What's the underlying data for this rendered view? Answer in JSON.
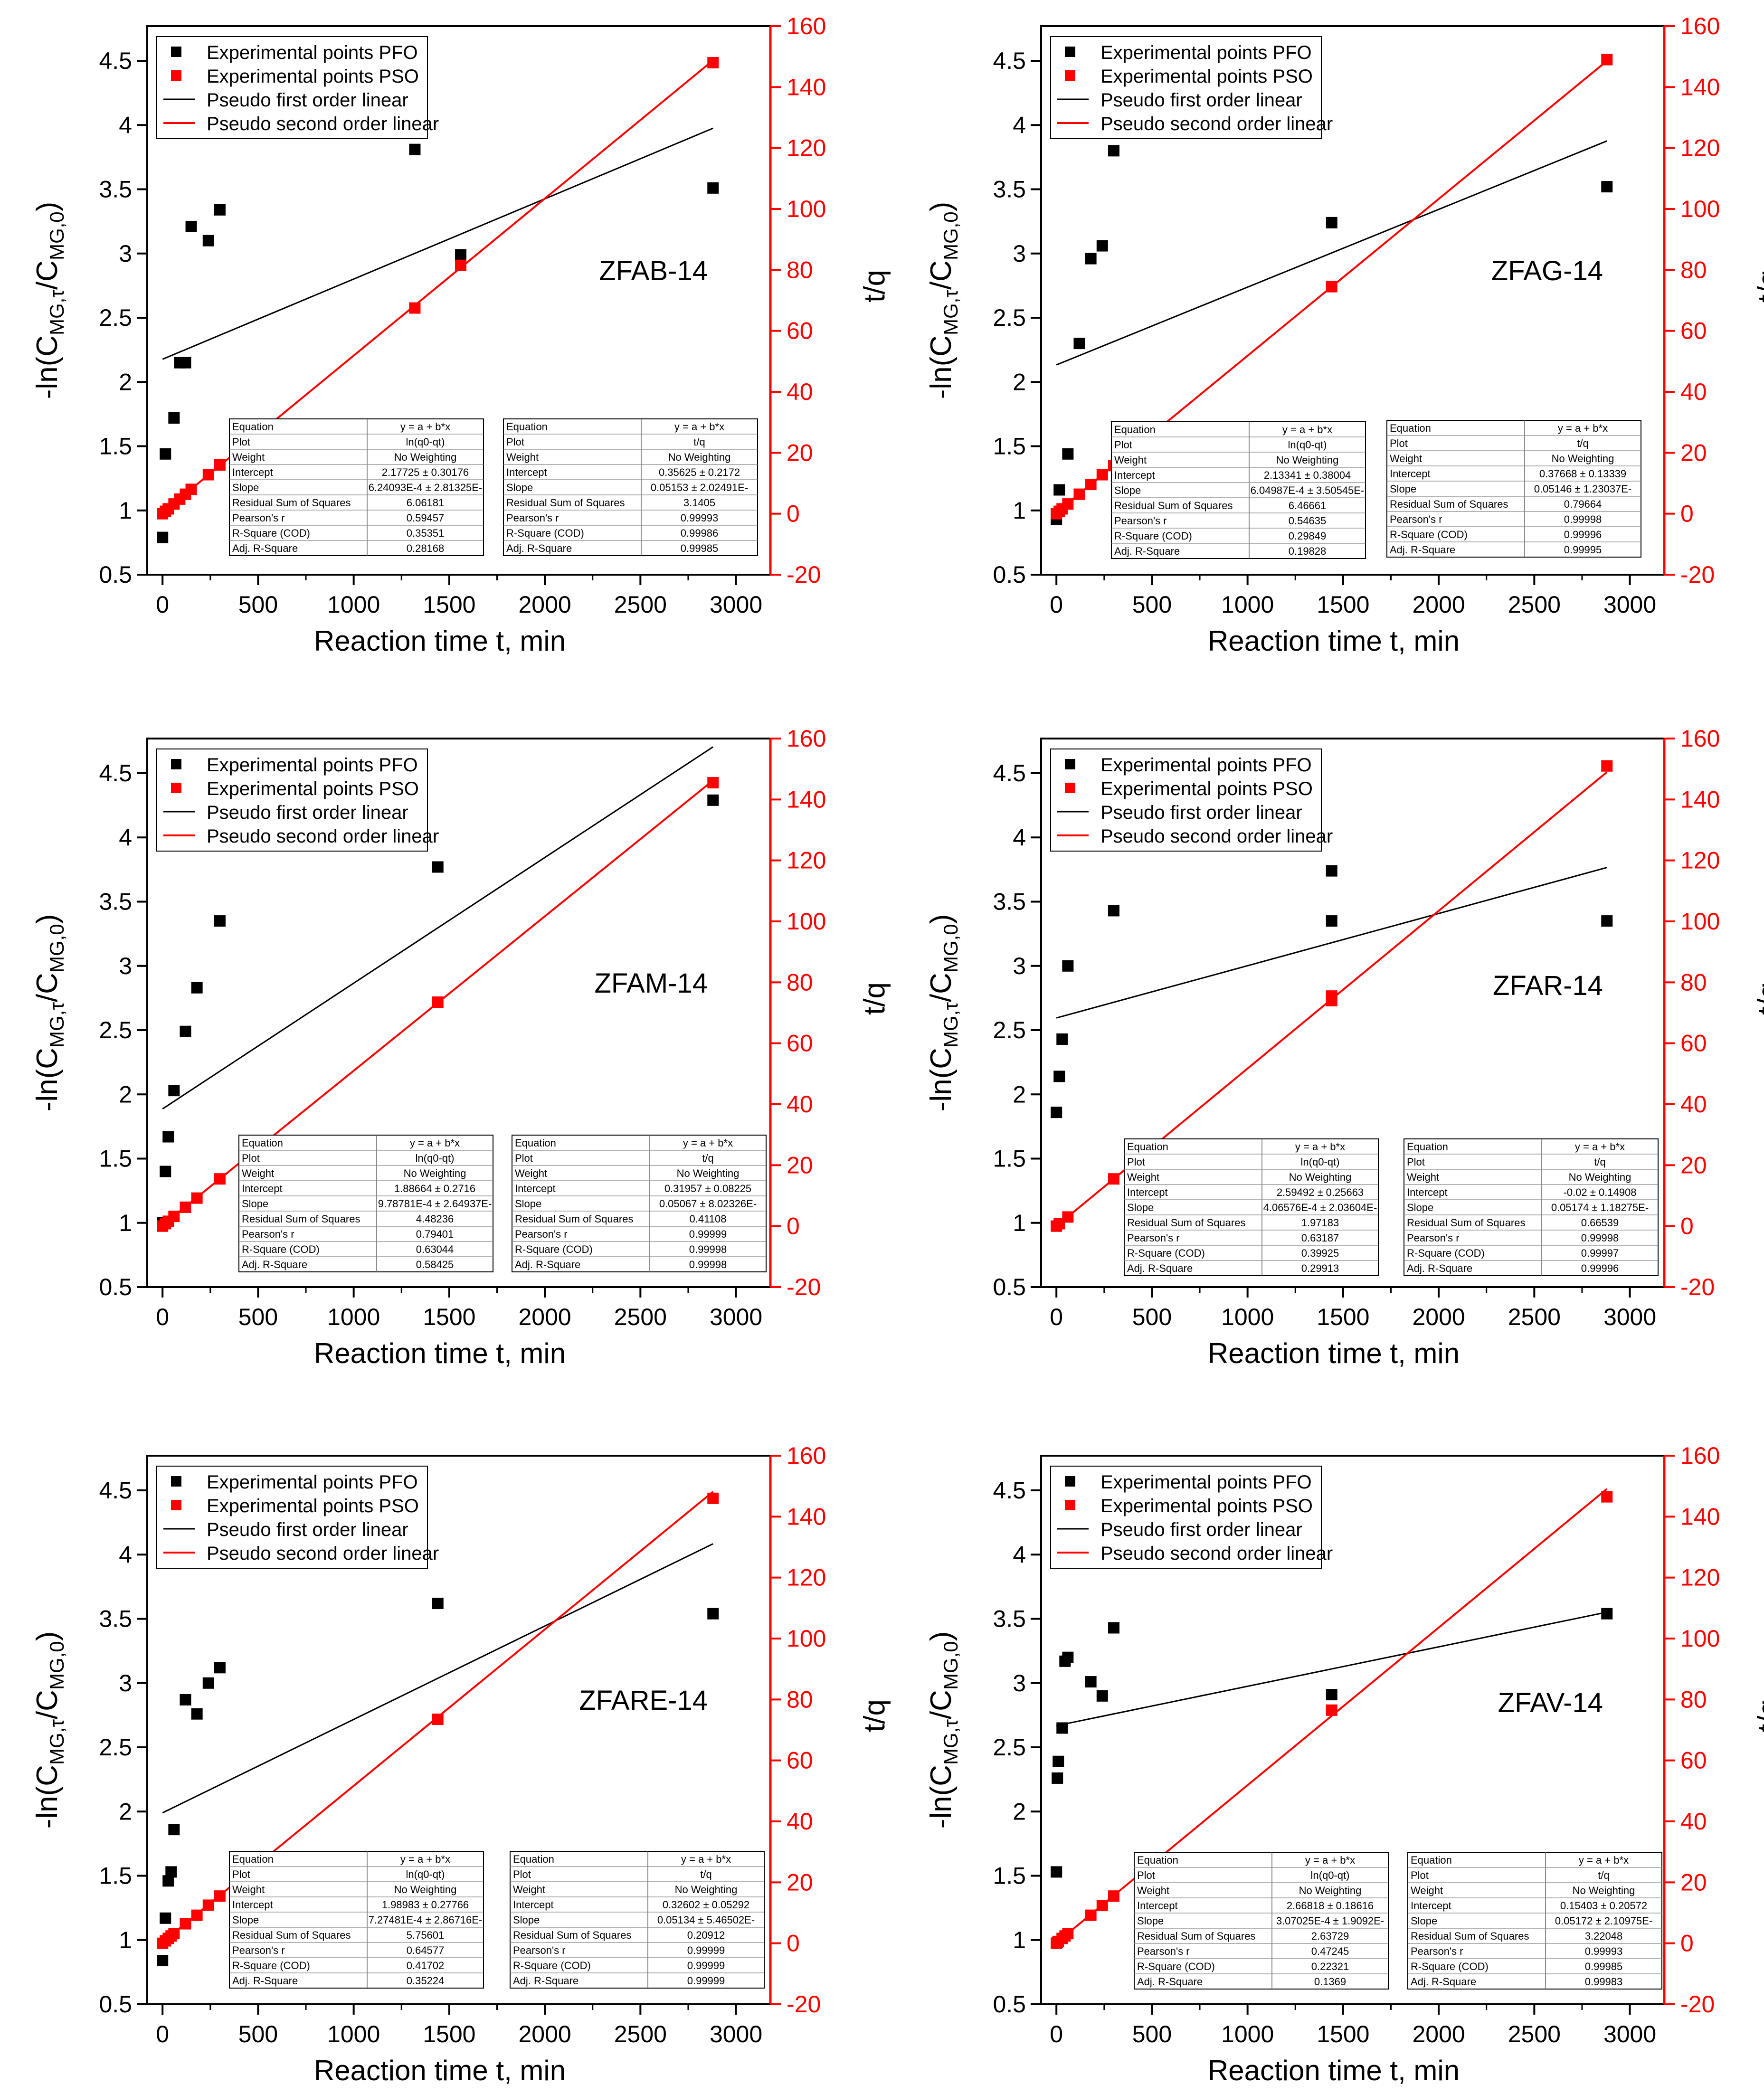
{
  "legend": {
    "pfo_points": "Experimental points PFO",
    "pso_points": "Experimental points PSO",
    "pfo_line": "Pseudo first order linear",
    "pso_line": "Pseudo second order linear"
  },
  "axis_titles": {
    "x": "Reaction time t, min",
    "y_left": "-ln(Cₘᴳ,τ/Cₘᴳ,₀)",
    "y_right": "t/q"
  },
  "fit_labels": [
    "Equation",
    "Plot",
    "Weight",
    "Intercept",
    "Slope",
    "Residual Sum of Squares",
    "Pearson's r",
    "R-Square (COD)",
    "Adj. R-Square"
  ],
  "colors": {
    "pfo": "#000000",
    "pso": "#ff0000",
    "right_axis": "#ff0000",
    "grid_box": "#555555"
  },
  "chart_data": [
    {
      "type": "scatter",
      "title": "ZFAB-14",
      "xlabel": "Reaction time t, min",
      "ylabel": "-ln(CMG,τ/CMG,0)",
      "y2label": "t/q",
      "xlim": [
        -80,
        3180
      ],
      "ylim": [
        0.5,
        4.77
      ],
      "y2lim": [
        -20,
        160
      ],
      "xticks": [
        0,
        500,
        1000,
        1500,
        2000,
        2500,
        3000
      ],
      "yticks": [
        0.5,
        1.0,
        1.5,
        2.0,
        2.5,
        3.0,
        3.5,
        4.0,
        4.5
      ],
      "y2ticks": [
        -20,
        0,
        20,
        40,
        60,
        80,
        100,
        120,
        140,
        160
      ],
      "pfo_points": {
        "x": [
          0,
          15,
          60,
          90,
          120,
          150,
          240,
          300,
          1320,
          1560,
          2880
        ],
        "y": [
          0.79,
          1.44,
          1.72,
          2.15,
          2.15,
          3.21,
          3.1,
          3.34,
          3.81,
          2.99,
          3.51
        ]
      },
      "pso_points": {
        "x": [
          0,
          15,
          30,
          60,
          90,
          120,
          150,
          240,
          300,
          1320,
          1560,
          2880
        ],
        "y": [
          0,
          0.8,
          1.6,
          3.2,
          4.8,
          6.4,
          8.0,
          12.8,
          16.0,
          67.5,
          81.5,
          148.0
        ]
      },
      "pfo_line": {
        "x": [
          0,
          2880
        ],
        "y": [
          2.177,
          3.975
        ]
      },
      "pso_line": {
        "x": [
          0,
          2880
        ],
        "y": [
          0.356,
          148.76
        ]
      },
      "fit_pfo": [
        "y = a + b*x",
        "ln(q0-qt)",
        "No Weighting",
        "2.17725 ± 0.30176",
        "6.24093E-4 ± 2.81325E-",
        "6.06181",
        "0.59457",
        "0.35351",
        "0.28168"
      ],
      "fit_pso": [
        "y = a + b*x",
        "t/q",
        "No Weighting",
        "0.35625 ± 0.2172",
        "0.05153 ± 2.02491E-",
        "3.1405",
        "0.99993",
        "0.99986",
        "0.99985"
      ]
    },
    {
      "type": "scatter",
      "title": "ZFAG-14",
      "xlabel": "Reaction time t, min",
      "ylabel": "-ln(CMG,τ/CMG,0)",
      "y2label": "t/q",
      "xlim": [
        -80,
        3180
      ],
      "ylim": [
        0.5,
        4.77
      ],
      "y2lim": [
        -20,
        160
      ],
      "xticks": [
        0,
        500,
        1000,
        1500,
        2000,
        2500,
        3000
      ],
      "yticks": [
        0.5,
        1.0,
        1.5,
        2.0,
        2.5,
        3.0,
        3.5,
        4.0,
        4.5
      ],
      "y2ticks": [
        -20,
        0,
        20,
        40,
        60,
        80,
        100,
        120,
        140,
        160
      ],
      "pfo_points": {
        "x": [
          0,
          15,
          60,
          120,
          180,
          240,
          300,
          1440,
          2880
        ],
        "y": [
          0.93,
          1.16,
          1.44,
          2.3,
          2.96,
          3.06,
          3.8,
          3.24,
          3.52
        ]
      },
      "pso_points": {
        "x": [
          0,
          15,
          30,
          60,
          120,
          180,
          240,
          300,
          1440,
          2880
        ],
        "y": [
          0,
          0.8,
          1.6,
          3.2,
          6.4,
          9.6,
          12.8,
          15.8,
          74.5,
          149.0
        ]
      },
      "pfo_line": {
        "x": [
          0,
          2880
        ],
        "y": [
          2.133,
          3.876
        ]
      },
      "pso_line": {
        "x": [
          0,
          2880
        ],
        "y": [
          0.377,
          148.58
        ]
      },
      "fit_pfo": [
        "y = a + b*x",
        "ln(q0-qt)",
        "No Weighting",
        "2.13341 ± 0.38004",
        "6.04987E-4 ± 3.50545E-",
        "6.46661",
        "0.54635",
        "0.29849",
        "0.19828"
      ],
      "fit_pso": [
        "y = a + b*x",
        "t/q",
        "No Weighting",
        "0.37668 ± 0.13339",
        "0.05146 ± 1.23037E-",
        "0.79664",
        "0.99998",
        "0.99996",
        "0.99995"
      ]
    },
    {
      "type": "scatter",
      "title": "ZFAM-14",
      "xlabel": "Reaction time t, min",
      "ylabel": "-ln(CMG,τ/CMG,0)",
      "y2label": "t/q",
      "xlim": [
        -80,
        3180
      ],
      "ylim": [
        0.5,
        4.77
      ],
      "y2lim": [
        -20,
        160
      ],
      "xticks": [
        0,
        500,
        1000,
        1500,
        2000,
        2500,
        3000
      ],
      "yticks": [
        0.5,
        1.0,
        1.5,
        2.0,
        2.5,
        3.0,
        3.5,
        4.0,
        4.5
      ],
      "y2ticks": [
        -20,
        0,
        20,
        40,
        60,
        80,
        100,
        120,
        140,
        160
      ],
      "pfo_points": {
        "x": [
          0,
          15,
          30,
          60,
          120,
          180,
          300,
          1440,
          2880
        ],
        "y": [
          1.0,
          1.4,
          1.67,
          2.03,
          2.49,
          2.83,
          3.35,
          3.77,
          4.29
        ]
      },
      "pso_points": {
        "x": [
          0,
          15,
          30,
          60,
          120,
          180,
          300,
          1440,
          2880
        ],
        "y": [
          0,
          0.8,
          1.6,
          3.2,
          6.2,
          9.2,
          15.5,
          73.5,
          145.5
        ]
      },
      "pfo_line": {
        "x": [
          0,
          2880
        ],
        "y": [
          1.887,
          4.705
        ]
      },
      "pso_line": {
        "x": [
          0,
          2880
        ],
        "y": [
          0.32,
          146.25
        ]
      },
      "fit_pfo": [
        "y = a + b*x",
        "ln(q0-qt)",
        "No Weighting",
        "1.88664 ± 0.2716",
        "9.78781E-4 ± 2.64937E-",
        "4.48236",
        "0.79401",
        "0.63044",
        "0.58425"
      ],
      "fit_pso": [
        "y = a + b*x",
        "t/q",
        "No Weighting",
        "0.31957 ± 0.08225",
        "0.05067 ± 8.02326E-",
        "0.41108",
        "0.99999",
        "0.99998",
        "0.99998"
      ]
    },
    {
      "type": "scatter",
      "title": "ZFAR-14",
      "xlabel": "Reaction time t, min",
      "ylabel": "-ln(CMG,τ/CMG,0)",
      "y2label": "t/q",
      "xlim": [
        -80,
        3180
      ],
      "ylim": [
        0.5,
        4.77
      ],
      "y2lim": [
        -20,
        160
      ],
      "xticks": [
        0,
        500,
        1000,
        1500,
        2000,
        2500,
        3000
      ],
      "yticks": [
        0.5,
        1.0,
        1.5,
        2.0,
        2.5,
        3.0,
        3.5,
        4.0,
        4.5
      ],
      "y2ticks": [
        -20,
        0,
        20,
        40,
        60,
        80,
        100,
        120,
        140,
        160
      ],
      "pfo_points": {
        "x": [
          0,
          15,
          30,
          60,
          300,
          1440,
          1440,
          2880
        ],
        "y": [
          1.86,
          2.14,
          2.43,
          3.0,
          3.43,
          3.35,
          3.74,
          3.35
        ]
      },
      "pso_points": {
        "x": [
          0,
          15,
          60,
          300,
          1440,
          1440,
          2880
        ],
        "y": [
          0,
          0.8,
          3.0,
          15.5,
          74.0,
          75.5,
          151.0
        ]
      },
      "pfo_line": {
        "x": [
          0,
          2880
        ],
        "y": [
          2.595,
          3.766
        ]
      },
      "pso_line": {
        "x": [
          0,
          2880
        ],
        "y": [
          -0.02,
          148.99
        ]
      },
      "fit_pfo": [
        "y = a + b*x",
        "ln(q0-qt)",
        "No Weighting",
        "2.59492 ± 0.25663",
        "4.06576E-4 ± 2.03604E-",
        "1.97183",
        "0.63187",
        "0.39925",
        "0.29913"
      ],
      "fit_pso": [
        "y = a + b*x",
        "t/q",
        "No Weighting",
        "-0.02 ± 0.14908",
        "0.05174 ± 1.18275E-",
        "0.66539",
        "0.99998",
        "0.99997",
        "0.99996"
      ]
    },
    {
      "type": "scatter",
      "title": "ZFARE-14",
      "xlabel": "Reaction time t, min",
      "ylabel": "-ln(CMG,τ/CMG,0)",
      "y2label": "t/q",
      "xlim": [
        -80,
        3180
      ],
      "ylim": [
        0.5,
        4.77
      ],
      "y2lim": [
        -20,
        160
      ],
      "xticks": [
        0,
        500,
        1000,
        1500,
        2000,
        2500,
        3000
      ],
      "yticks": [
        0.5,
        1.0,
        1.5,
        2.0,
        2.5,
        3.0,
        3.5,
        4.0,
        4.5
      ],
      "y2ticks": [
        -20,
        0,
        20,
        40,
        60,
        80,
        100,
        120,
        140,
        160
      ],
      "pfo_points": {
        "x": [
          0,
          15,
          30,
          45,
          60,
          120,
          180,
          240,
          300,
          1440,
          2880
        ],
        "y": [
          0.84,
          1.17,
          1.46,
          1.53,
          1.86,
          2.87,
          2.76,
          3.0,
          3.12,
          3.62,
          3.54
        ]
      },
      "pso_points": {
        "x": [
          0,
          15,
          30,
          45,
          60,
          120,
          180,
          240,
          300,
          1440,
          2880
        ],
        "y": [
          0,
          0.8,
          1.6,
          2.4,
          3.2,
          6.4,
          9.2,
          12.5,
          15.5,
          73.5,
          146.0
        ]
      },
      "pfo_line": {
        "x": [
          0,
          2880
        ],
        "y": [
          1.99,
          4.084
        ]
      },
      "pso_line": {
        "x": [
          0,
          2880
        ],
        "y": [
          0.326,
          148.18
        ]
      },
      "fit_pfo": [
        "y = a + b*x",
        "ln(q0-qt)",
        "No Weighting",
        "1.98983 ± 0.27766",
        "7.27481E-4 ± 2.86716E-",
        "5.75601",
        "0.64577",
        "0.41702",
        "0.35224"
      ],
      "fit_pso": [
        "y = a + b*x",
        "t/q",
        "No Weighting",
        "0.32602 ± 0.05292",
        "0.05134 ± 5.46502E-",
        "0.20912",
        "0.99999",
        "0.99999",
        "0.99999"
      ]
    },
    {
      "type": "scatter",
      "title": "ZFAV-14",
      "xlabel": "Reaction time t, min",
      "ylabel": "-ln(CMG,τ/CMG,0)",
      "y2label": "t/q",
      "xlim": [
        -80,
        3180
      ],
      "ylim": [
        0.5,
        4.77
      ],
      "y2lim": [
        -20,
        160
      ],
      "xticks": [
        0,
        500,
        1000,
        1500,
        2000,
        2500,
        3000
      ],
      "yticks": [
        0.5,
        1.0,
        1.5,
        2.0,
        2.5,
        3.0,
        3.5,
        4.0,
        4.5
      ],
      "y2ticks": [
        -20,
        0,
        20,
        40,
        60,
        80,
        100,
        120,
        140,
        160
      ],
      "pfo_points": {
        "x": [
          0,
          5,
          10,
          30,
          45,
          60,
          180,
          240,
          300,
          1440,
          2880
        ],
        "y": [
          1.53,
          2.26,
          2.39,
          2.65,
          3.17,
          3.2,
          3.01,
          2.9,
          3.43,
          2.91,
          3.54
        ]
      },
      "pso_points": {
        "x": [
          0,
          5,
          10,
          30,
          45,
          60,
          180,
          240,
          300,
          1440,
          2880
        ],
        "y": [
          0,
          0.3,
          0.6,
          1.6,
          2.4,
          3.2,
          9.2,
          12.4,
          15.5,
          76.5,
          146.5
        ]
      },
      "pfo_line": {
        "x": [
          0,
          2880
        ],
        "y": [
          2.668,
          3.552
        ]
      },
      "pso_line": {
        "x": [
          0,
          2880
        ],
        "y": [
          0.154,
          149.11
        ]
      },
      "fit_pfo": [
        "y = a + b*x",
        "ln(q0-qt)",
        "No Weighting",
        "2.66818 ± 0.18616",
        "3.07025E-4 ± 1.9092E-",
        "2.63729",
        "0.47245",
        "0.22321",
        "0.1369"
      ],
      "fit_pso": [
        "y = a + b*x",
        "t/q",
        "No Weighting",
        "0.15403 ± 0.20572",
        "0.05172 ± 2.10975E-",
        "3.22048",
        "0.99993",
        "0.99985",
        "0.99983"
      ]
    }
  ]
}
